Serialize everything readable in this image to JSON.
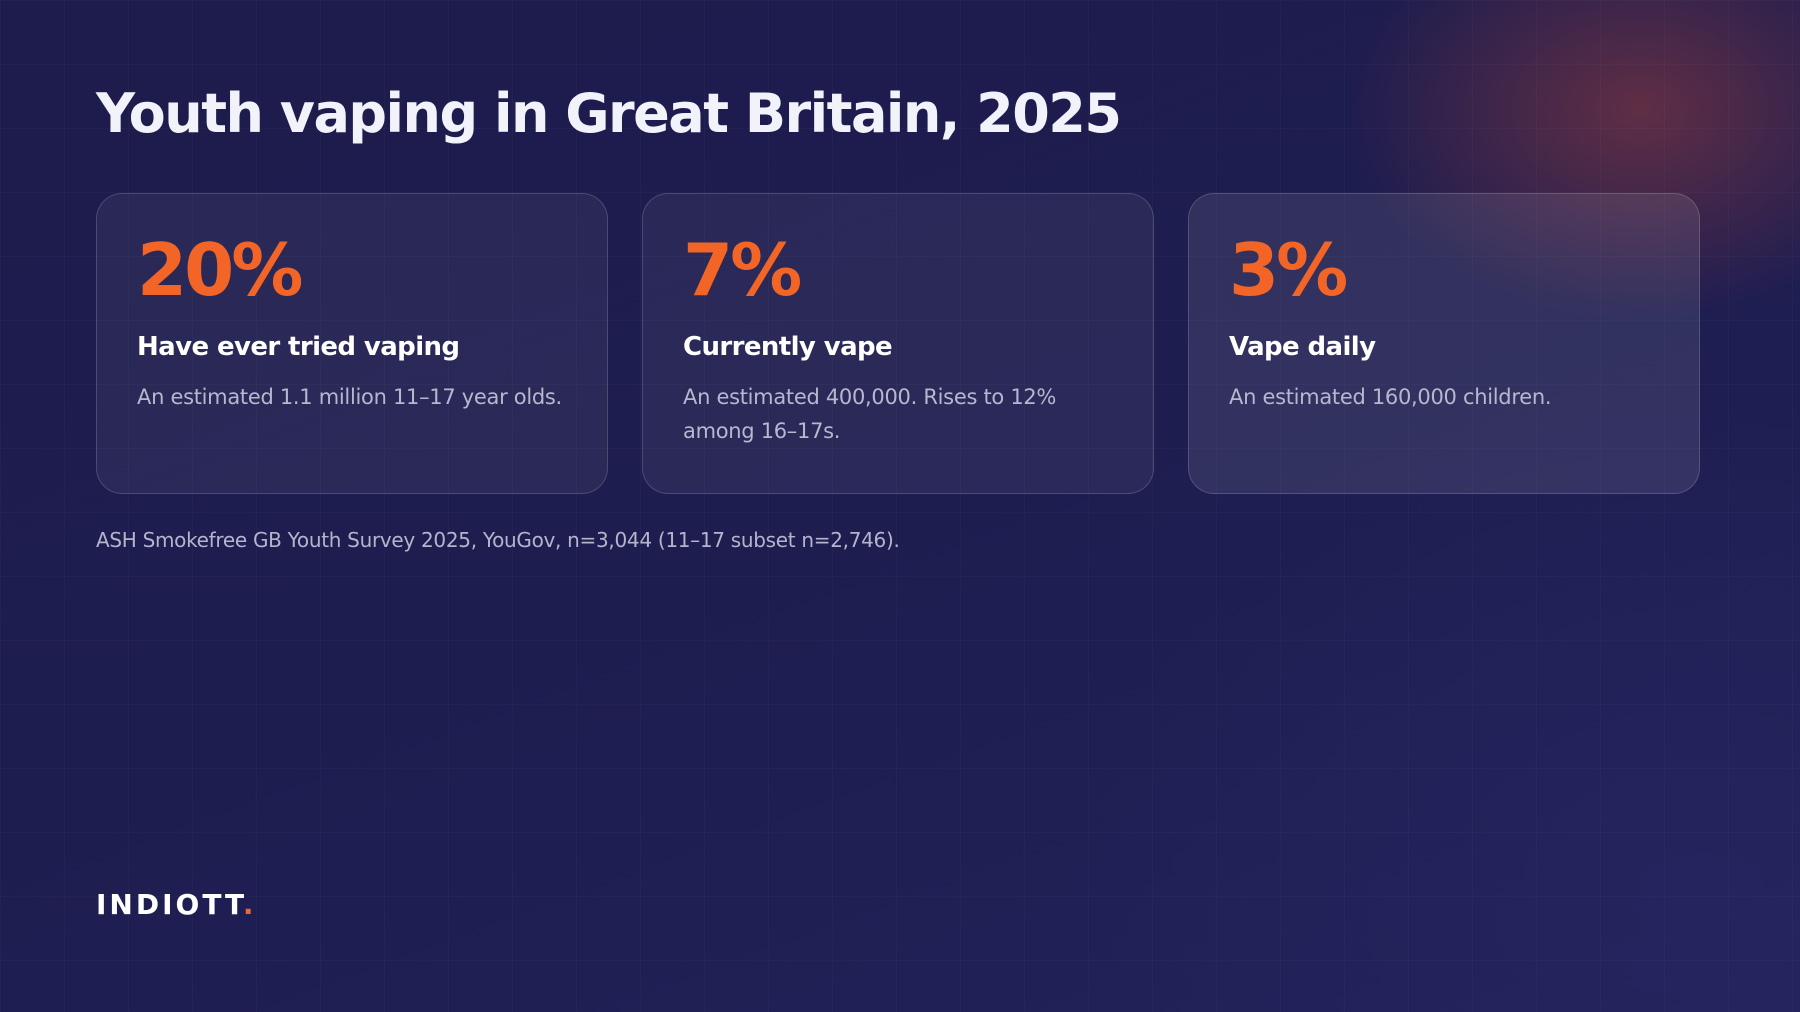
{
  "title": "Youth vaping in Great Britain, 2025",
  "accent_color": "#f26526",
  "cards": [
    {
      "stat": "20%",
      "label": "Have ever tried vaping",
      "description": "An estimated 1.1 million 11–17 year olds."
    },
    {
      "stat": "7%",
      "label": "Currently vape",
      "description": "An estimated 400,000. Rises to 12% among 16–17s."
    },
    {
      "stat": "3%",
      "label": "Vape daily",
      "description": "An estimated 160,000 children."
    }
  ],
  "source": "ASH Smokefree GB Youth Survey 2025, YouGov, n=3,044 (11–17 subset n=2,746).",
  "brand": {
    "name": "INDIOTT",
    "dot": "."
  }
}
